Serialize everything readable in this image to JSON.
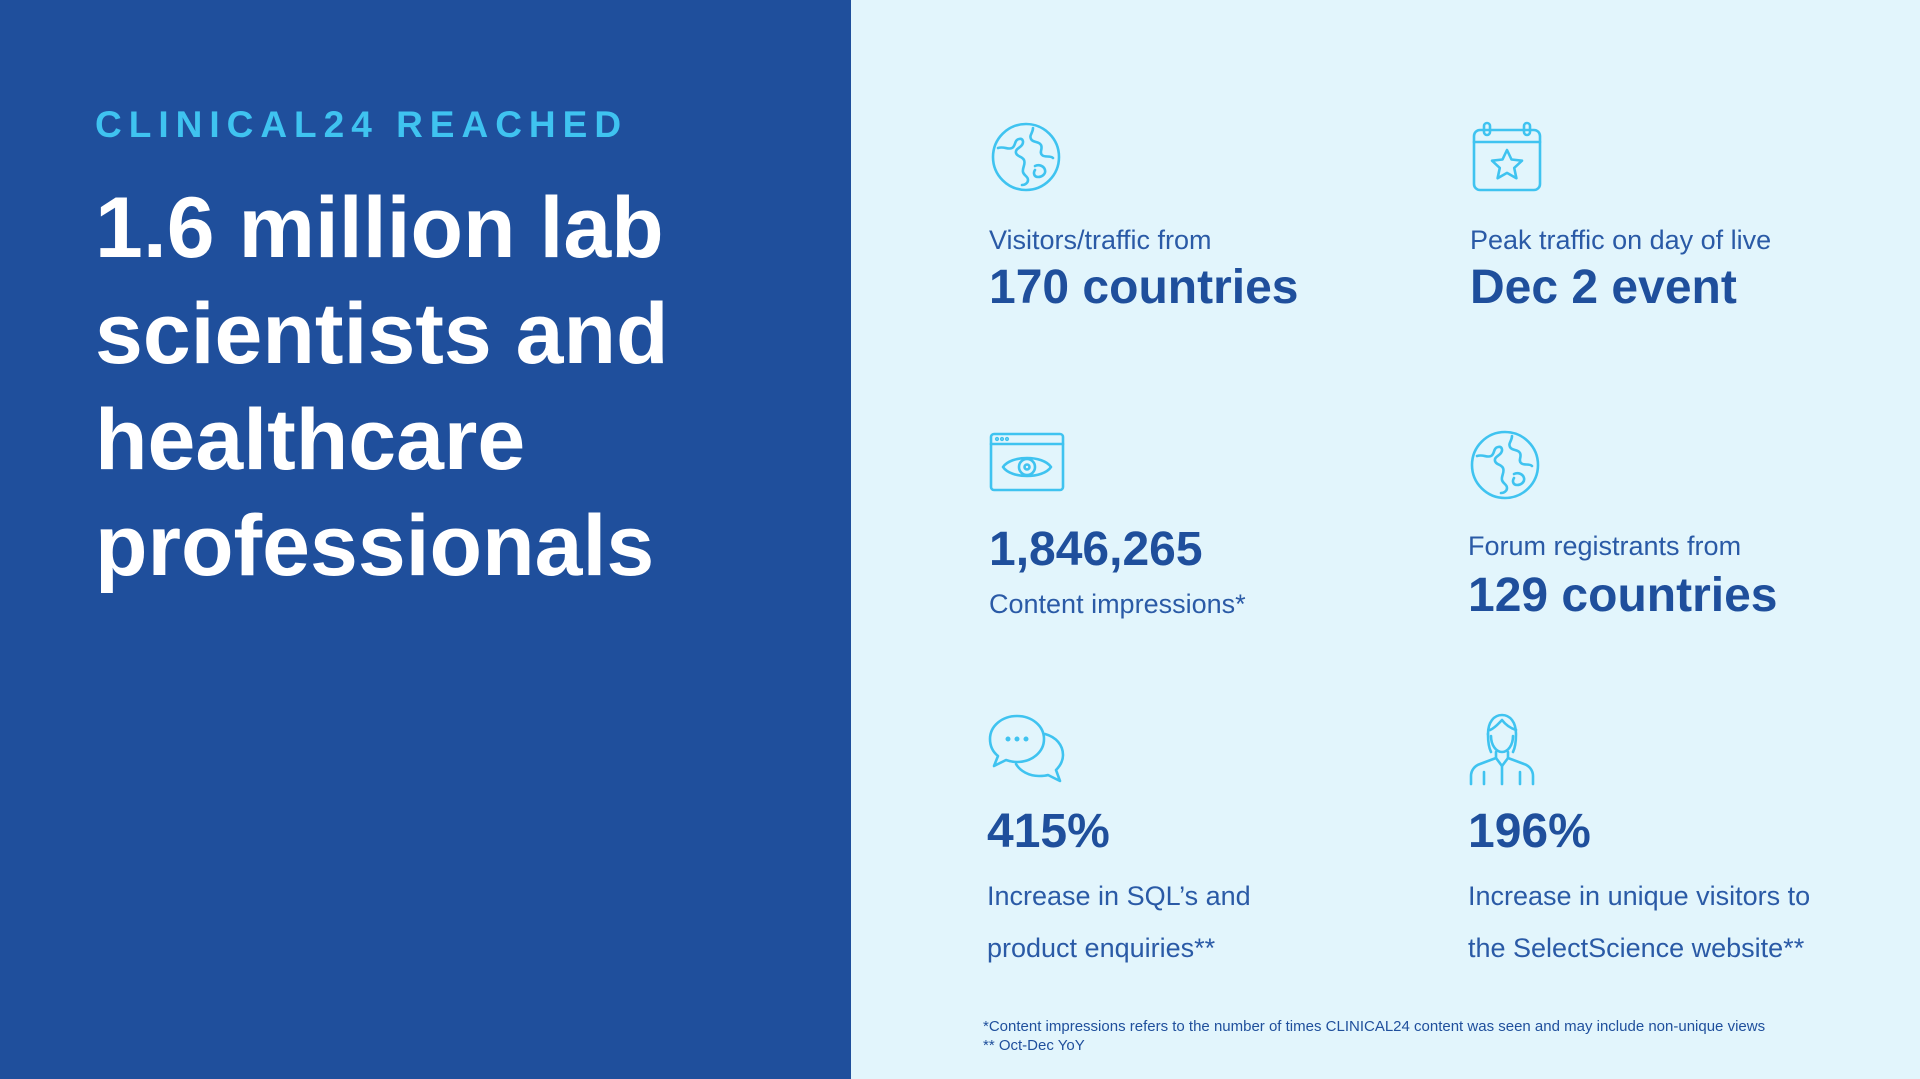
{
  "colors": {
    "left_background": "#1f4f9c",
    "right_background": "#e2f5fc",
    "accent": "#3fc3f0",
    "headline_text": "#ffffff",
    "stat_text": "#1f4f9c"
  },
  "left": {
    "eyebrow": "CLINICAL24 REACHED",
    "headline": "1.6 million lab scientists and healthcare professionals"
  },
  "stats": [
    {
      "icon": "globe-icon",
      "label": "Visitors/traffic from",
      "value": "170 countries"
    },
    {
      "icon": "calendar-star-icon",
      "label": "Peak traffic on day of live",
      "value": "Dec 2 event"
    },
    {
      "icon": "browser-eye-icon",
      "value": "1,846,265",
      "label": "Content impressions*"
    },
    {
      "icon": "globe-icon",
      "label": "Forum registrants from",
      "value": "129 countries"
    },
    {
      "icon": "chat-bubbles-icon",
      "value": "415%",
      "label_line1": "Increase in SQL’s and",
      "label_line2": "product enquiries**"
    },
    {
      "icon": "person-icon",
      "value": "196%",
      "label_line1": "Increase in unique visitors to",
      "label_line2": "the SelectScience website**"
    }
  ],
  "footnotes": [
    "*Content impressions refers to the number of times CLINICAL24 content was seen and may include non-unique views",
    "** Oct-Dec YoY"
  ]
}
